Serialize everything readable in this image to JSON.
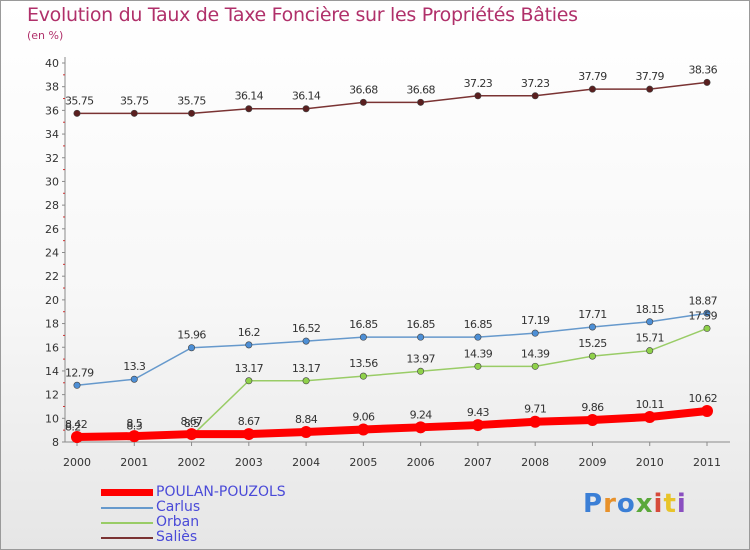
{
  "title": "Evolution du Taux de Taxe Foncière sur les Propriétés Bâties",
  "unit_label": "(en %)",
  "brand": {
    "text": "Proxiti",
    "colors": [
      "#3b7fd6",
      "#e8912a",
      "#3b7fd6",
      "#5aa83a",
      "#d64a3b",
      "#e8c42a",
      "#8a4fc0"
    ]
  },
  "chart_data": {
    "type": "line",
    "title": "Evolution du Taux de Taxe Foncière sur les Propriétés Bâties",
    "ylabel": "(en %)",
    "xlabel": "",
    "x": [
      "2000",
      "2001",
      "2002",
      "2003",
      "2004",
      "2005",
      "2006",
      "2007",
      "2008",
      "2009",
      "2010",
      "2011"
    ],
    "ylim": [
      8,
      40
    ],
    "yticks": [
      8,
      10,
      12,
      14,
      16,
      18,
      20,
      22,
      24,
      26,
      28,
      30,
      32,
      34,
      36,
      38,
      40
    ],
    "grid": false,
    "legend": "bottom-left",
    "series": [
      {
        "name": "POULAN-POUZOLS",
        "color": "#ff0000",
        "thick": true,
        "values": [
          8.42,
          8.5,
          8.67,
          8.67,
          8.84,
          9.06,
          9.24,
          9.43,
          9.71,
          9.86,
          10.11,
          10.62
        ],
        "labels": [
          "8.42",
          "8.5",
          "8.67",
          "8.67",
          "8.84",
          "9.06",
          "9.24",
          "9.43",
          "9.71",
          "9.86",
          "10.11",
          "10.62"
        ]
      },
      {
        "name": "Carlus",
        "color": "#6699cc",
        "marker": "#4d8fd6",
        "values": [
          12.79,
          13.3,
          15.96,
          16.2,
          16.52,
          16.85,
          16.85,
          16.85,
          17.19,
          17.71,
          18.15,
          18.87
        ],
        "labels": [
          "12.79",
          "13.3",
          "15.96",
          "16.2",
          "16.52",
          "16.85",
          "16.85",
          "16.85",
          "17.19",
          "17.71",
          "18.15",
          "18.87"
        ]
      },
      {
        "name": "Orban",
        "color": "#99cc66",
        "marker": "#8fd14a",
        "values": [
          8.2,
          8.3,
          8.5,
          13.17,
          13.17,
          13.56,
          13.97,
          14.39,
          14.39,
          15.25,
          15.71,
          17.59
        ],
        "labels": [
          "8.2",
          "8.3",
          "8.5",
          "13.17",
          "13.17",
          "13.56",
          "13.97",
          "14.39",
          "14.39",
          "15.25",
          "15.71",
          "17.59"
        ]
      },
      {
        "name": "Saliès",
        "color": "#7a3333",
        "marker": "#5a1f1f",
        "values": [
          35.75,
          35.75,
          35.75,
          36.14,
          36.14,
          36.68,
          36.68,
          37.23,
          37.23,
          37.79,
          37.79,
          38.36
        ],
        "labels": [
          "35.75",
          "35.75",
          "35.75",
          "36.14",
          "36.14",
          "36.68",
          "36.68",
          "37.23",
          "37.23",
          "37.79",
          "37.79",
          "38.36"
        ]
      }
    ]
  }
}
